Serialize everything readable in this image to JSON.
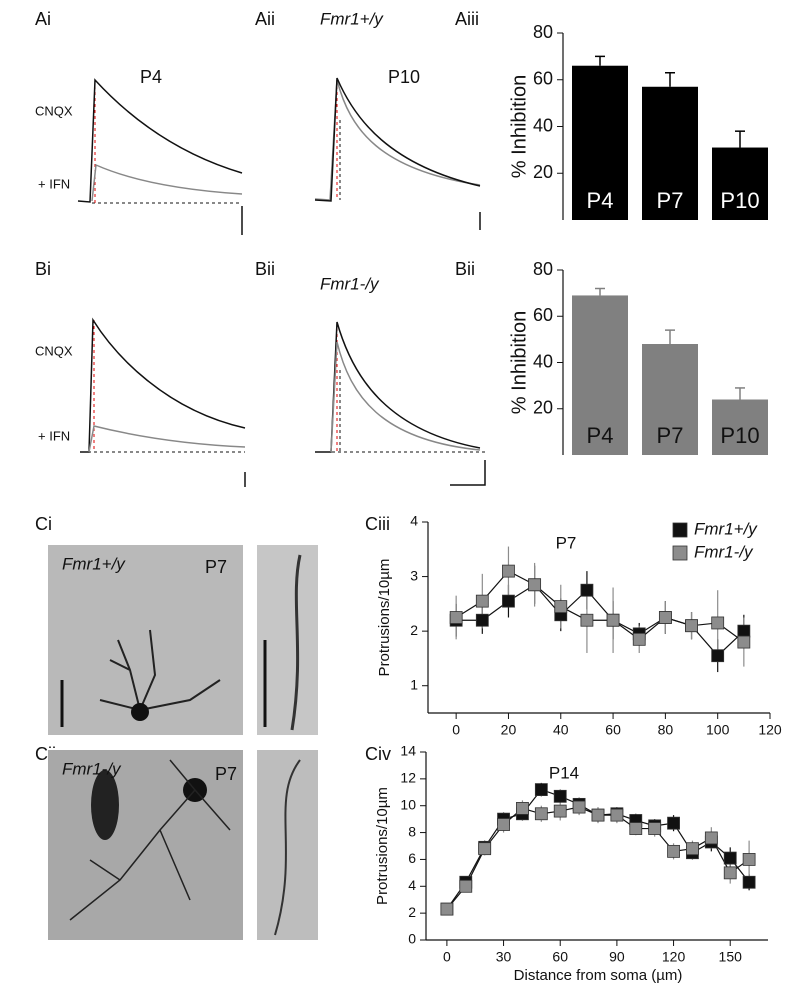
{
  "panels": {
    "traces": [
      {
        "label": "Ai",
        "condition": "P4",
        "upper": "CNQX",
        "lower": "+ IFN"
      },
      {
        "label": "Aii",
        "genotype": "Fmr1+/y",
        "condition": "P10"
      },
      {
        "label": "Bi",
        "upper": "CNQX",
        "lower": "+ IFN"
      },
      {
        "label": "Bii",
        "genotype": "Fmr1-/y"
      }
    ],
    "images": [
      {
        "label": "Ci",
        "genotype": "Fmr1+/y",
        "age": "P7"
      },
      {
        "label": "Cii",
        "genotype": "Fmr1-/y",
        "age": "P7"
      }
    ]
  },
  "chart_data": [
    {
      "type": "bar",
      "label": "Aiii",
      "y_label": "% Inhibition",
      "categories": [
        "P4",
        "P7",
        "P10"
      ],
      "values": [
        66,
        57,
        31
      ],
      "errors": [
        4,
        6,
        7
      ],
      "color": "#000000",
      "label_color": "#ffffff",
      "ylim": [
        0,
        80
      ],
      "yticks": [
        20,
        40,
        60,
        80
      ]
    },
    {
      "type": "bar",
      "label": "Bii",
      "y_label": "% Inhibition",
      "categories": [
        "P4",
        "P7",
        "P10"
      ],
      "values": [
        69,
        48,
        24
      ],
      "errors": [
        3,
        6,
        5
      ],
      "color": "#808080",
      "label_color": "#111111",
      "ylim": [
        0,
        80
      ],
      "yticks": [
        20,
        40,
        60,
        80
      ]
    },
    {
      "type": "line",
      "label": "Ciii",
      "title": "P7",
      "y_label": "Protrusions/10µm",
      "x": [
        0,
        10,
        20,
        30,
        40,
        50,
        60,
        70,
        80,
        90,
        100,
        110
      ],
      "series": [
        {
          "name": "Fmr1+/y",
          "color": "#111111",
          "values": [
            2.2,
            2.2,
            2.55,
            2.85,
            2.3,
            2.75,
            2.2,
            1.95,
            2.25,
            2.1,
            1.55,
            2.0
          ],
          "errors": [
            0.3,
            0.25,
            0.3,
            0.35,
            0.3,
            0.35,
            0.35,
            0.2,
            0.3,
            0.25,
            0.3,
            0.3
          ]
        },
        {
          "name": "Fmr1-/y",
          "color": "#8c8c8c",
          "values": [
            2.25,
            2.55,
            3.1,
            2.85,
            2.45,
            2.2,
            2.2,
            1.85,
            2.25,
            2.1,
            2.15,
            1.8
          ],
          "errors": [
            0.4,
            0.5,
            0.45,
            0.4,
            0.4,
            0.6,
            0.6,
            0.25,
            0.3,
            0.25,
            0.6,
            0.45
          ]
        }
      ],
      "legend": "upper right",
      "xlim": [
        -10,
        120
      ],
      "xticks": [
        0,
        20,
        40,
        60,
        80,
        100,
        120
      ],
      "ylim": [
        0.5,
        4
      ],
      "yticks": [
        1,
        2,
        3,
        4
      ]
    },
    {
      "type": "line",
      "label": "Civ",
      "title": "P14",
      "x_label": "Distance from soma (µm)",
      "y_label": "Protrusions/10µm",
      "x": [
        0,
        10,
        20,
        30,
        40,
        50,
        60,
        70,
        80,
        90,
        100,
        110,
        120,
        130,
        140,
        150,
        160
      ],
      "series": [
        {
          "color": "#111111",
          "values": [
            2.3,
            4.3,
            6.9,
            9.0,
            9.4,
            11.2,
            10.7,
            10.1,
            9.3,
            9.4,
            8.9,
            8.5,
            8.7,
            6.5,
            7.3,
            6.1,
            4.3
          ],
          "errors": [
            0.3,
            0.4,
            0.5,
            0.5,
            0.5,
            0.5,
            0.5,
            0.5,
            0.5,
            0.5,
            0.5,
            0.5,
            0.6,
            0.5,
            0.7,
            0.8,
            0.6
          ]
        },
        {
          "color": "#8c8c8c",
          "values": [
            2.3,
            4.0,
            6.8,
            8.6,
            9.8,
            9.4,
            9.6,
            9.9,
            9.3,
            9.3,
            8.3,
            8.3,
            6.6,
            6.8,
            7.6,
            5.0,
            6.0
          ],
          "errors": [
            0.3,
            0.4,
            0.5,
            0.6,
            0.6,
            0.6,
            0.7,
            0.6,
            0.6,
            0.6,
            0.5,
            0.6,
            0.6,
            0.6,
            0.8,
            0.8,
            1.4
          ]
        }
      ],
      "xlim": [
        -10,
        170
      ],
      "xticks": [
        0,
        30,
        60,
        90,
        120,
        150
      ],
      "ylim": [
        0,
        14
      ],
      "yticks": [
        0,
        2,
        4,
        6,
        8,
        10,
        12,
        14
      ]
    }
  ]
}
